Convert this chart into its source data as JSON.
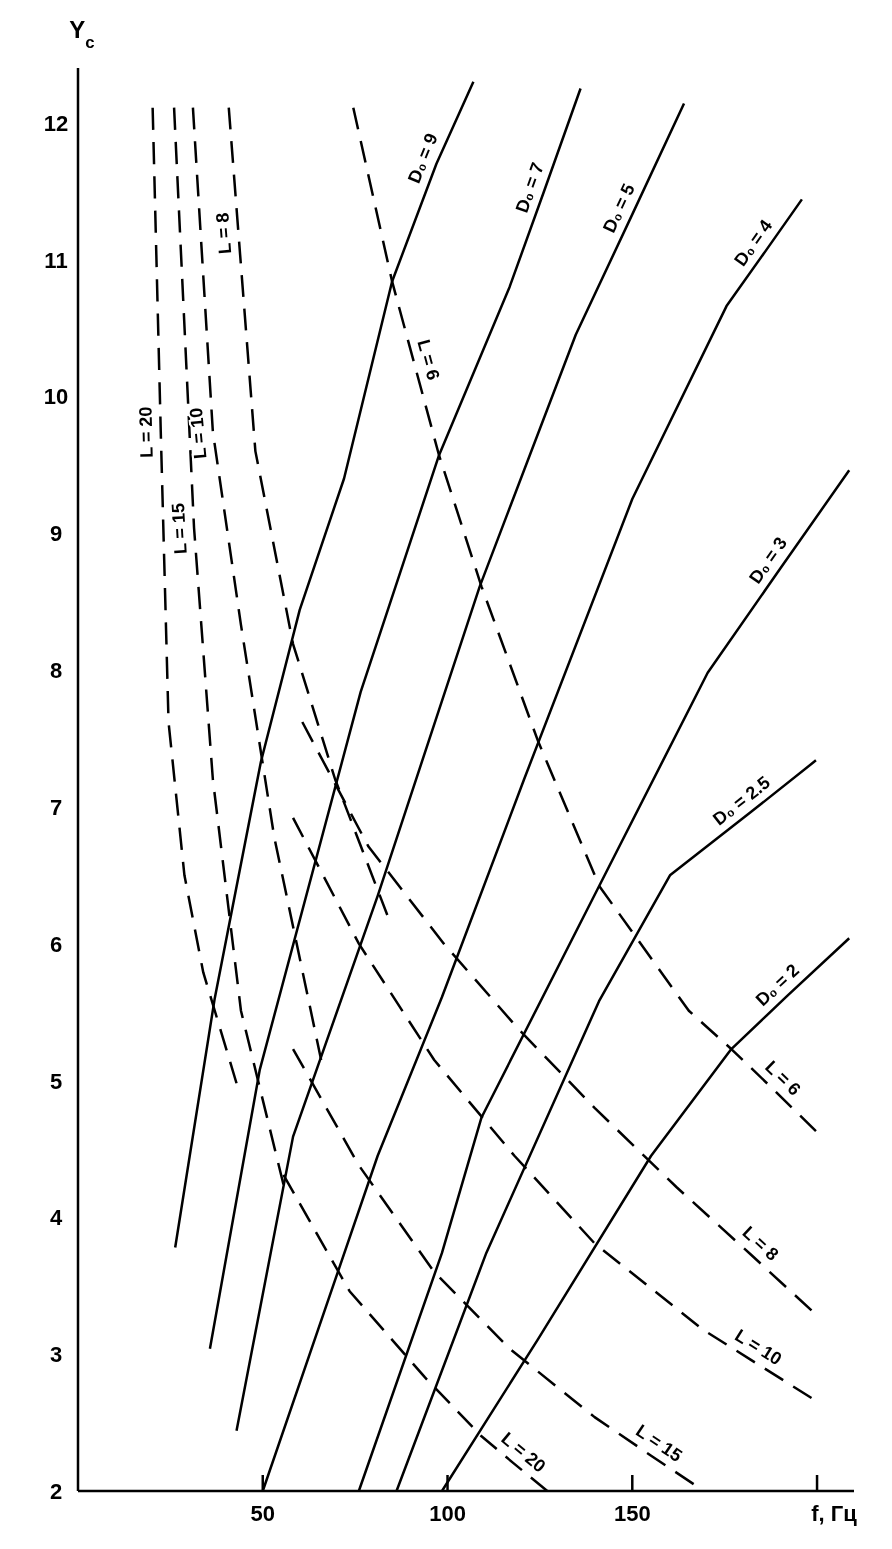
{
  "chart_data": {
    "type": "line",
    "xlabel": "f, Гц",
    "ylabel": "Y$_{c}$",
    "xlim": [
      0,
      210
    ],
    "ylim": [
      2,
      12.4
    ],
    "xticks": [
      50,
      100,
      150,
      {
        "value": 200,
        "label": null
      }
    ],
    "yticks": [
      2,
      3,
      4,
      5,
      6,
      7,
      8,
      9,
      10,
      11,
      12
    ],
    "series": [
      {
        "color": "#000000",
        "line_style": "solid",
        "x": [
          26.3,
          37,
          49.5,
          60,
          72,
          85,
          97,
          107
        ],
        "values": [
          3.78,
          5.6,
          7.33,
          8.44,
          9.4,
          10.84,
          11.7,
          12.3
        ]
      },
      {
        "color": "#000000",
        "line_style": "solid",
        "x": [
          35.7,
          49.2,
          76.5,
          97.7,
          116.8,
          126,
          136
        ],
        "values": [
          3.04,
          5.08,
          7.84,
          9.57,
          10.8,
          11.49,
          12.25
        ]
      },
      {
        "color": "#000000",
        "line_style": "solid",
        "x": [
          42.9,
          58.2,
          81.1,
          108.7,
          134.7,
          150,
          164
        ],
        "values": [
          2.44,
          4.59,
          6.35,
          8.61,
          10.45,
          11.33,
          12.14
        ]
      },
      {
        "color": "#000000",
        "line_style": "solid",
        "x": [
          50,
          81.1,
          98.5,
          120.7,
          150,
          175.5,
          186,
          195.9
        ],
        "values": [
          2,
          4.45,
          5.61,
          7.2,
          9.25,
          10.66,
          11.06,
          11.44
        ]
      },
      {
        "color": "#000000",
        "line_style": "solid",
        "x": [
          76,
          98.5,
          109.2,
          141,
          170.4,
          190,
          208.7
        ],
        "values": [
          2,
          3.74,
          4.73,
          6.42,
          7.98,
          8.74,
          9.46
        ]
      },
      {
        "color": "#000000",
        "line_style": "solid",
        "x": [
          86.2,
          110.5,
          141,
          160.2,
          182,
          199.7
        ],
        "values": [
          2,
          3.74,
          5.58,
          6.5,
          6.96,
          7.34
        ]
      },
      {
        "color": "#000000",
        "line_style": "solid",
        "x": [
          98.5,
          124.5,
          155.1,
          176.8,
          192,
          208.7
        ],
        "values": [
          2,
          3.11,
          4.45,
          5.23,
          5.62,
          6.04
        ]
      },
      {
        "color": "#000000",
        "line_style": "dashed",
        "x": [
          20.2,
          22.4,
          24.5,
          28.8,
          33.9,
          42.9
        ],
        "values": [
          12.11,
          9.74,
          7.62,
          6.5,
          5.79,
          4.98
        ]
      },
      {
        "color": "#000000",
        "line_style": "dashed",
        "x": [
          26,
          31.4,
          36.5,
          44.1,
          55.6
        ],
        "values": [
          12.11,
          9.04,
          7.2,
          5.51,
          4.24
        ]
      },
      {
        "color": "#000000",
        "line_style": "dashed",
        "x": [
          31.1,
          36.5,
          44.1,
          53.1,
          65.8
        ],
        "values": [
          12.11,
          9.74,
          8.33,
          6.78,
          5.15
        ]
      },
      {
        "color": "#000000",
        "line_style": "dashed",
        "x": [
          40.8,
          43.4,
          48,
          58.2,
          69.6,
          83.7
        ],
        "values": [
          12.11,
          11.2,
          9.6,
          8.19,
          7.2,
          6.21
        ]
      },
      {
        "color": "#000000",
        "line_style": "dashed",
        "x": [
          74.5,
          85,
          91,
          97.7,
          109.2,
          124.5,
          141.1,
          165.3,
          176.8,
          188,
          199.7
        ],
        "values": [
          12.11,
          10.84,
          10.24,
          9.57,
          8.61,
          7.48,
          6.42,
          5.51,
          5.23,
          4.94,
          4.63
        ]
      },
      {
        "color": "#000000",
        "line_style": "dashed",
        "x": [
          60.7,
          78.6,
          99,
          119.4,
          139.8,
          162,
          182,
          198.5
        ],
        "values": [
          7.62,
          6.71,
          6,
          5.37,
          4.8,
          4.22,
          3.73,
          3.32
        ]
      },
      {
        "color": "#000000",
        "line_style": "dashed",
        "x": [
          58.2,
          76,
          96.4,
          118.1,
          139.8,
          169.1,
          182,
          198.5
        ],
        "values": [
          6.92,
          6,
          5.15,
          4.45,
          3.81,
          3.18,
          2.96,
          2.68
        ]
      },
      {
        "color": "#000000",
        "line_style": "dashed",
        "x": [
          58.2,
          76,
          96.4,
          116.8,
          139.8,
          155,
          166.6
        ],
        "values": [
          5.23,
          4.38,
          3.6,
          3.04,
          2.54,
          2.26,
          2.05
        ]
      },
      {
        "color": "#000000",
        "line_style": "dashed",
        "x": [
          55.6,
          73.5,
          93.9,
          109.2,
          118,
          127
        ],
        "values": [
          4.31,
          3.46,
          2.83,
          2.4,
          2.2,
          2
        ]
      }
    ],
    "annotations": [
      {
        "text": "D₀ = 9",
        "x": 97,
        "y": 11.7
      },
      {
        "text": "D₀ = 7",
        "x": 126,
        "y": 11.49
      },
      {
        "text": "D₀ = 5",
        "x": 150,
        "y": 11.33
      },
      {
        "text": "D₀ = 4",
        "x": 186,
        "y": 11.06
      },
      {
        "text": "D₀ = 3",
        "x": 190,
        "y": 8.74
      },
      {
        "text": "D₀ = 2.5",
        "x": 182,
        "y": 6.96
      },
      {
        "text": "D₀ = 2",
        "x": 192,
        "y": 5.62
      },
      {
        "text": "L = 20",
        "x": 22.4,
        "y": 9.74
      },
      {
        "text": "L = 15",
        "x": 31.4,
        "y": 9.04
      },
      {
        "text": "L = 10",
        "x": 36.5,
        "y": 9.74
      },
      {
        "text": "L = 8",
        "x": 43.4,
        "y": 11.2
      },
      {
        "text": "L = 6",
        "x": 91,
        "y": 10.24
      },
      {
        "text": "L = 6",
        "x": 188,
        "y": 4.94
      },
      {
        "text": "L = 8",
        "x": 182,
        "y": 3.73
      },
      {
        "text": "L = 10",
        "x": 182,
        "y": 2.96
      },
      {
        "text": "L = 15",
        "x": 155,
        "y": 2.26
      },
      {
        "text": "L = 20",
        "x": 118,
        "y": 2.2
      }
    ]
  }
}
